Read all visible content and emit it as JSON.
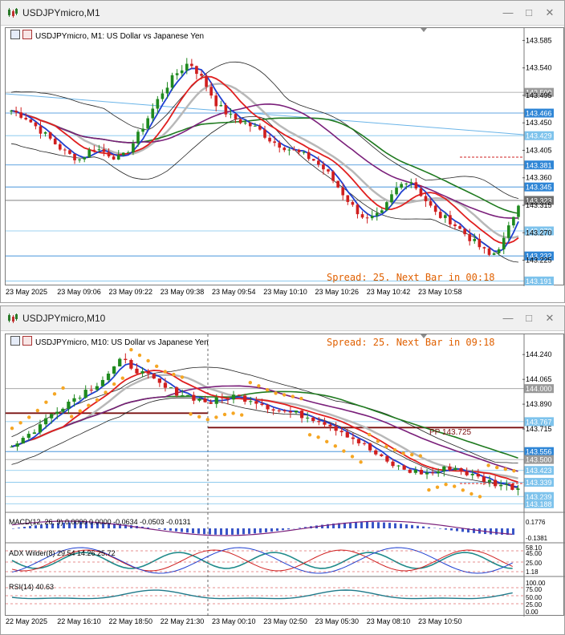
{
  "window1": {
    "title": "USDJPYmicro,M1",
    "chart_label": "USDJPYmicro, M1:  US Dollar vs Japanese Yen",
    "spread_text": "Spread: 25. Next Bar in 00:18",
    "price_axis": [
      "143.585",
      "143.540",
      "143.495",
      "143.450",
      "143.405",
      "143.360",
      "143.315",
      "143.270",
      "143.225"
    ],
    "price_tags": [
      {
        "text": "143.500",
        "style": "gray"
      },
      {
        "text": "143.466",
        "style": "blue"
      },
      {
        "text": "143.429",
        "style": "lblue"
      },
      {
        "text": "143.381",
        "style": "blue"
      },
      {
        "text": "143.345",
        "style": "blue"
      },
      {
        "text": "143.323",
        "style": "dgray"
      },
      {
        "text": "143.273",
        "style": "lblue"
      },
      {
        "text": "143.232",
        "style": "blue"
      },
      {
        "text": "143.191",
        "style": "lblue"
      }
    ],
    "time_axis": [
      "23 May 2025",
      "23 May 09:06",
      "23 May 09:22",
      "23 May 09:38",
      "23 May 09:54",
      "23 May 10:10",
      "23 May 10:26",
      "23 May 10:42",
      "23 May 10:58"
    ]
  },
  "window2": {
    "title": "USDJPYmicro,M10",
    "chart_label": "USDJPYmicro, M10:  US Dollar vs Japanese Yen",
    "spread_text": "Spread: 25. Next Bar in 09:18",
    "pp_label": "PP 143.725",
    "price_axis": [
      "144.240",
      "144.065",
      "143.890",
      "143.715"
    ],
    "price_tags": [
      {
        "text": "144.000",
        "style": "gray"
      },
      {
        "text": "143.767",
        "style": "lblue"
      },
      {
        "text": "143.556",
        "style": "blue"
      },
      {
        "text": "143.500",
        "style": "gray"
      },
      {
        "text": "143.423",
        "style": "lblue"
      },
      {
        "text": "143.339",
        "style": "lblue"
      },
      {
        "text": "143.239",
        "style": "lblue"
      },
      {
        "text": "143.188",
        "style": "lblue"
      }
    ],
    "macd_label": "MACD(12, 26, 9) 0.0000 0.0000 -0.0634 -0.0503 -0.0131",
    "macd_axis": [
      "0.1776",
      "-0.1381"
    ],
    "adx_label": "ADX Wilder(8) 29.54 14.26 25.72",
    "adx_axis": [
      "58.10",
      "45.00",
      "25.00",
      "1.18"
    ],
    "rsi_label": "RSI(14) 40.63",
    "rsi_axis": [
      "100.00",
      "75.00",
      "50.00",
      "25.00",
      "0.00"
    ],
    "time_axis": [
      "22 May 2025",
      "22 May 16:10",
      "22 May 18:50",
      "22 May 21:30",
      "23 May 00:10",
      "23 May 02:50",
      "23 May 05:30",
      "23 May 08:10",
      "23 May 10:50"
    ]
  },
  "chart_data": [
    {
      "type": "candlestick",
      "title": "USDJPYmicro, M1:  US Dollar vs Japanese Yen",
      "ylim": [
        143.185,
        143.6
      ],
      "x": [
        "23 May 2025",
        "23 May 09:06",
        "23 May 09:22",
        "23 May 09:38",
        "23 May 09:54",
        "23 May 10:10",
        "23 May 10:26",
        "23 May 10:42",
        "23 May 10:58"
      ],
      "close_path": [
        143.47,
        143.46,
        143.44,
        143.42,
        143.4,
        143.39,
        143.41,
        143.4,
        143.39,
        143.42,
        143.46,
        143.5,
        143.53,
        143.55,
        143.52,
        143.48,
        143.46,
        143.45,
        143.44,
        143.42,
        143.41,
        143.4,
        143.39,
        143.37,
        143.34,
        143.31,
        143.29,
        143.3,
        143.34,
        143.36,
        143.33,
        143.3,
        143.29,
        143.27,
        143.25,
        143.23,
        143.26,
        143.32
      ]
    },
    {
      "type": "candlestick",
      "title": "USDJPYmicro, M10:  US Dollar vs Japanese Yen",
      "ylim": [
        143.15,
        144.36
      ],
      "x": [
        "22 May 2025",
        "22 May 16:10",
        "22 May 18:50",
        "22 May 21:30",
        "23 May 00:10",
        "23 May 02:50",
        "23 May 05:30",
        "23 May 08:10",
        "23 May 10:50"
      ],
      "close_path": [
        143.6,
        143.7,
        143.85,
        143.95,
        144.05,
        144.2,
        144.1,
        144.0,
        143.95,
        143.9,
        143.95,
        143.92,
        143.85,
        143.82,
        143.78,
        143.7,
        143.6,
        143.48,
        143.42,
        143.4,
        143.45,
        143.38,
        143.33,
        143.3
      ]
    }
  ]
}
